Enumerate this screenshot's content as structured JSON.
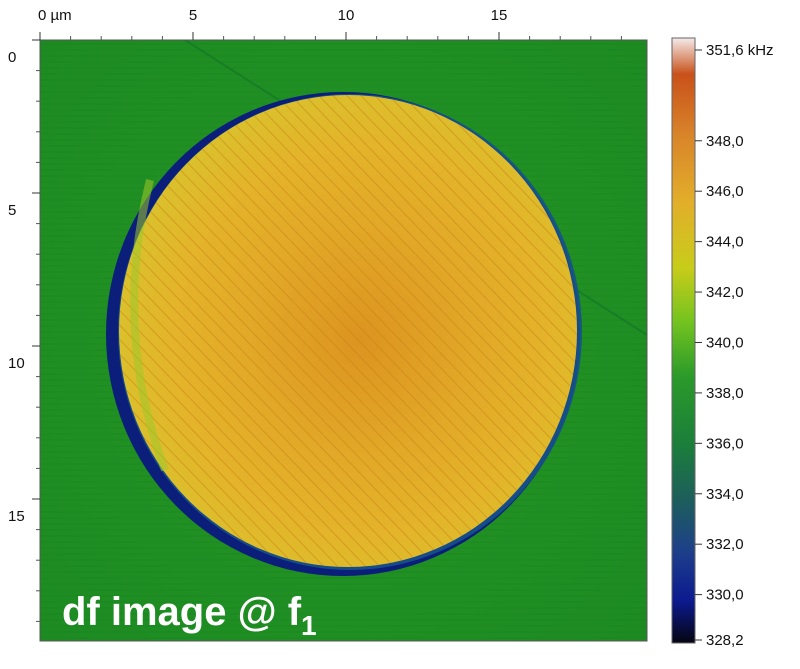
{
  "image": {
    "caption_main": "df image @ f",
    "caption_sub": "1",
    "colors": {
      "background": "#1f8e1f",
      "disc": "#e0b024",
      "disc_hot": "#d98a18",
      "shadow": "#0b1e7a",
      "frame": "#555555"
    }
  },
  "x_axis": {
    "ticks": [
      {
        "value": 0,
        "label": "0 µm"
      },
      {
        "value": 5,
        "label": "5"
      },
      {
        "value": 10,
        "label": "10"
      },
      {
        "value": 15,
        "label": "15"
      }
    ]
  },
  "y_axis": {
    "ticks": [
      {
        "value": 0,
        "label": "0"
      },
      {
        "value": 5,
        "label": "5"
      },
      {
        "value": 10,
        "label": "10"
      },
      {
        "value": 15,
        "label": "15"
      }
    ]
  },
  "colorbar": {
    "ticks": [
      {
        "value": 351.6,
        "label": "351,6 kHz"
      },
      {
        "value": 348.0,
        "label": "348,0"
      },
      {
        "value": 346.0,
        "label": "346,0"
      },
      {
        "value": 344.0,
        "label": "344,0"
      },
      {
        "value": 342.0,
        "label": "342,0"
      },
      {
        "value": 340.0,
        "label": "340,0"
      },
      {
        "value": 338.0,
        "label": "338,0"
      },
      {
        "value": 336.0,
        "label": "336,0"
      },
      {
        "value": 334.0,
        "label": "334,0"
      },
      {
        "value": 332.0,
        "label": "332,0"
      },
      {
        "value": 330.0,
        "label": "330,0"
      },
      {
        "value": 328.2,
        "label": "328,2"
      }
    ],
    "gradient": [
      "#f4eaea",
      "#c9511a",
      "#d8842a",
      "#e2ae2a",
      "#c8cc1a",
      "#73c31f",
      "#2a9a2a",
      "#1b7f3a",
      "#1d5f5a",
      "#1d3f8a",
      "#0c1a8f",
      "#050510"
    ]
  }
}
